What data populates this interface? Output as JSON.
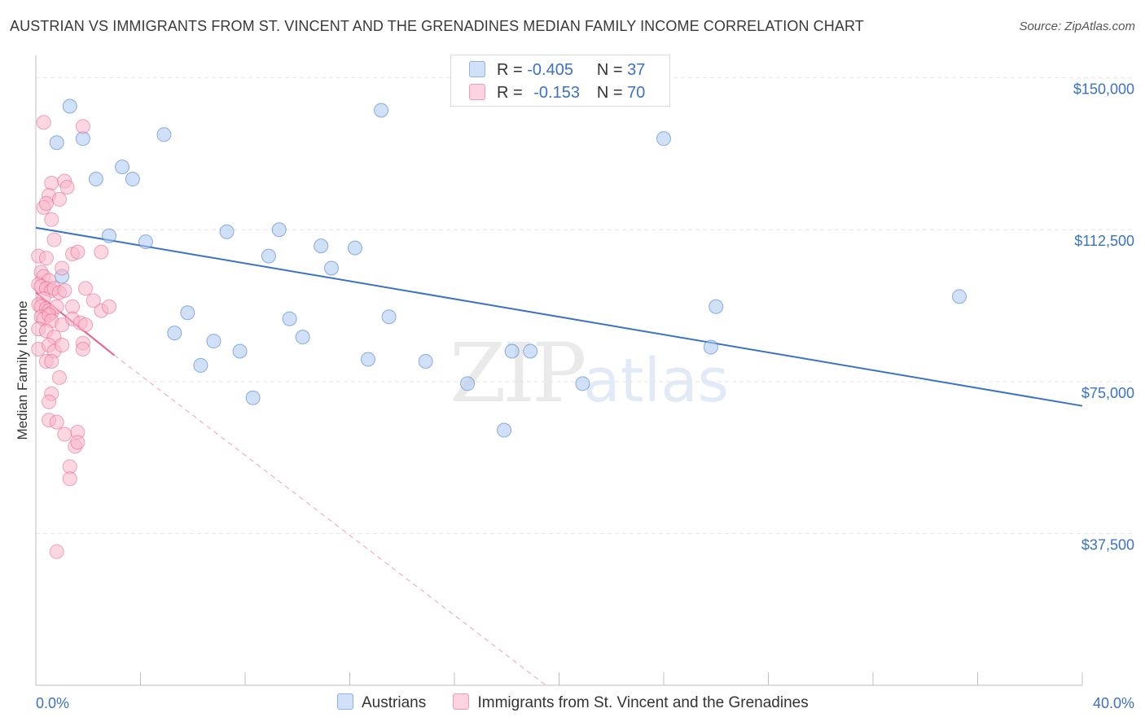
{
  "title": "AUSTRIAN VS IMMIGRANTS FROM ST. VINCENT AND THE GRENADINES MEDIAN FAMILY INCOME CORRELATION CHART",
  "source": "Source: ZipAtlas.com",
  "watermark": {
    "zip": "ZIP",
    "atlas": "atlas"
  },
  "legend_top": {
    "rows": [
      {
        "r_label": "R =",
        "r_value": "-0.405",
        "n_label": "N =",
        "n_value": "37",
        "color": "#a9c8f0"
      },
      {
        "r_label": "R =",
        "r_value": "-0.153",
        "n_label": "N =",
        "n_value": "70",
        "color": "#f7b6cb"
      }
    ]
  },
  "legend_bottom": [
    {
      "label": "Austrians",
      "color": "#a9c8f0"
    },
    {
      "label": "Immigrants from St. Vincent and the Grenadines",
      "color": "#f7b6cb"
    }
  ],
  "chart_data": {
    "type": "scatter",
    "title": "AUSTRIAN VS IMMIGRANTS FROM ST. VINCENT AND THE GRENADINES MEDIAN FAMILY INCOME CORRELATION CHART",
    "xlabel": "",
    "ylabel": "Median Family Income",
    "xlim": [
      0,
      40
    ],
    "ylim": [
      0,
      153750
    ],
    "x_tick_labels": [
      "0.0%",
      "40.0%"
    ],
    "y_ticks": [
      37500,
      75000,
      112500,
      150000
    ],
    "y_tick_labels": [
      "$37,500",
      "$75,000",
      "$112,500",
      "$150,000"
    ],
    "grid": true,
    "series": [
      {
        "name": "Austrians",
        "color": "#3b72c4",
        "fill": "#a9c8f0",
        "points": [
          [
            1.3,
            143000
          ],
          [
            0.8,
            134000
          ],
          [
            1.8,
            135000
          ],
          [
            4.9,
            136000
          ],
          [
            3.3,
            128000
          ],
          [
            2.3,
            125000
          ],
          [
            3.7,
            125000
          ],
          [
            13.2,
            142000
          ],
          [
            24.0,
            135000
          ],
          [
            2.8,
            111000
          ],
          [
            4.2,
            109500
          ],
          [
            7.3,
            112000
          ],
          [
            9.3,
            112500
          ],
          [
            8.9,
            106000
          ],
          [
            10.9,
            108500
          ],
          [
            12.2,
            108000
          ],
          [
            11.3,
            103000
          ],
          [
            35.3,
            96000
          ],
          [
            1.0,
            101000
          ],
          [
            5.8,
            92000
          ],
          [
            9.7,
            90500
          ],
          [
            13.5,
            91000
          ],
          [
            26.0,
            93500
          ],
          [
            5.3,
            87000
          ],
          [
            6.8,
            85000
          ],
          [
            10.2,
            86000
          ],
          [
            7.8,
            82500
          ],
          [
            12.7,
            80500
          ],
          [
            14.9,
            80000
          ],
          [
            18.2,
            82500
          ],
          [
            18.9,
            82500
          ],
          [
            25.8,
            83500
          ],
          [
            6.3,
            79000
          ],
          [
            16.5,
            74500
          ],
          [
            20.9,
            74500
          ],
          [
            8.3,
            71000
          ],
          [
            17.9,
            63000
          ]
        ],
        "trend": {
          "x": [
            0,
            40
          ],
          "y": [
            113000,
            69000
          ]
        }
      },
      {
        "name": "Immigrants from St. Vincent and the Grenadines",
        "color": "#e8608a",
        "fill": "#f7b6cb",
        "points": [
          [
            0.3,
            139000
          ],
          [
            1.8,
            138000
          ],
          [
            0.6,
            124000
          ],
          [
            1.1,
            124500
          ],
          [
            1.2,
            123000
          ],
          [
            0.5,
            121000
          ],
          [
            0.3,
            118000
          ],
          [
            0.9,
            120000
          ],
          [
            0.4,
            119000
          ],
          [
            0.6,
            115000
          ],
          [
            0.7,
            110000
          ],
          [
            0.1,
            106000
          ],
          [
            0.4,
            105500
          ],
          [
            1.4,
            106500
          ],
          [
            1.6,
            107000
          ],
          [
            2.5,
            107000
          ],
          [
            0.2,
            102000
          ],
          [
            0.3,
            101000
          ],
          [
            0.5,
            100000
          ],
          [
            1.0,
            103000
          ],
          [
            0.1,
            99000
          ],
          [
            0.2,
            98500
          ],
          [
            0.4,
            98000
          ],
          [
            0.6,
            97500
          ],
          [
            0.7,
            98000
          ],
          [
            0.9,
            97000
          ],
          [
            1.1,
            97500
          ],
          [
            0.3,
            95500
          ],
          [
            0.1,
            94000
          ],
          [
            0.2,
            93500
          ],
          [
            0.4,
            93000
          ],
          [
            0.5,
            92500
          ],
          [
            0.6,
            92000
          ],
          [
            0.8,
            93500
          ],
          [
            1.4,
            93500
          ],
          [
            2.5,
            92500
          ],
          [
            2.8,
            93500
          ],
          [
            0.2,
            91000
          ],
          [
            0.3,
            90500
          ],
          [
            0.5,
            91500
          ],
          [
            0.6,
            90000
          ],
          [
            1.0,
            89000
          ],
          [
            1.4,
            90500
          ],
          [
            1.7,
            89500
          ],
          [
            1.9,
            89000
          ],
          [
            0.1,
            88000
          ],
          [
            0.4,
            87500
          ],
          [
            0.7,
            86000
          ],
          [
            0.1,
            83000
          ],
          [
            0.5,
            84000
          ],
          [
            0.7,
            82500
          ],
          [
            1.0,
            84000
          ],
          [
            1.8,
            84500
          ],
          [
            1.8,
            83000
          ],
          [
            0.4,
            80000
          ],
          [
            0.6,
            80000
          ],
          [
            0.9,
            76000
          ],
          [
            0.6,
            72000
          ],
          [
            0.5,
            70000
          ],
          [
            0.5,
            65500
          ],
          [
            0.8,
            65000
          ],
          [
            1.1,
            62000
          ],
          [
            1.6,
            62500
          ],
          [
            1.5,
            59000
          ],
          [
            1.6,
            60000
          ],
          [
            1.3,
            54000
          ],
          [
            1.3,
            51000
          ],
          [
            0.8,
            33000
          ],
          [
            1.9,
            98000
          ],
          [
            2.2,
            95000
          ]
        ],
        "trend": {
          "x": [
            0,
            3.0
          ],
          "y": [
            97000,
            81500
          ]
        },
        "trend_extension": {
          "x": [
            3.0,
            19.5
          ],
          "y": [
            81500,
            0
          ]
        }
      }
    ]
  }
}
